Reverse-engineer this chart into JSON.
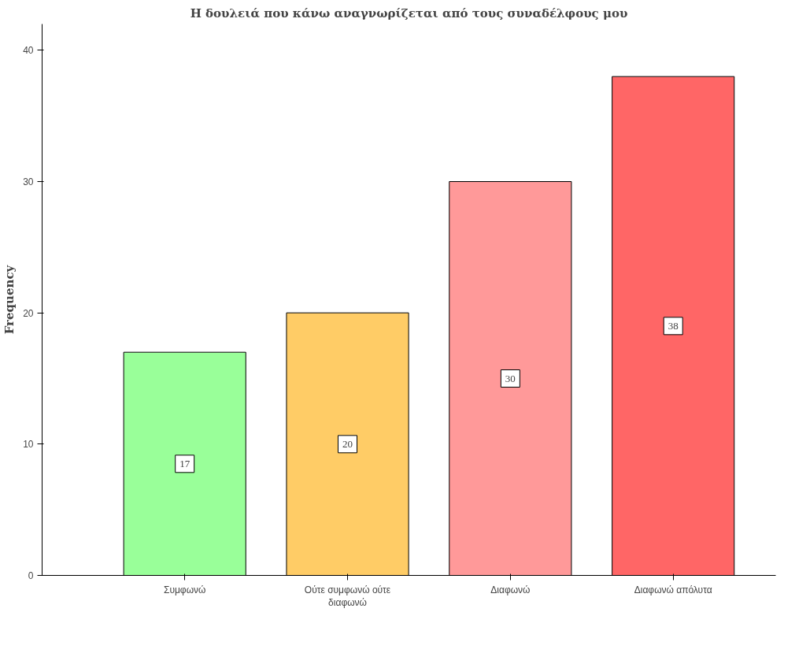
{
  "chart_data": {
    "type": "bar",
    "title": "Η δουλειά που κάνω αναγνωρίζεται από τους συναδέλφους μου",
    "ylabel": "Frequency",
    "categories": [
      "Συμφωνώ",
      "Ούτε συμφωνώ ούτε διαφωνώ",
      "Διαφωνώ",
      "Διαφωνώ απόλυτα"
    ],
    "values": [
      17,
      20,
      30,
      38
    ],
    "colors": [
      "#99ff99",
      "#ffcc66",
      "#ff9999",
      "#ff6666"
    ],
    "ylim": [
      0,
      42
    ],
    "yticks": [
      0,
      10,
      20,
      30,
      40
    ],
    "grid": false,
    "data_labels": true
  }
}
